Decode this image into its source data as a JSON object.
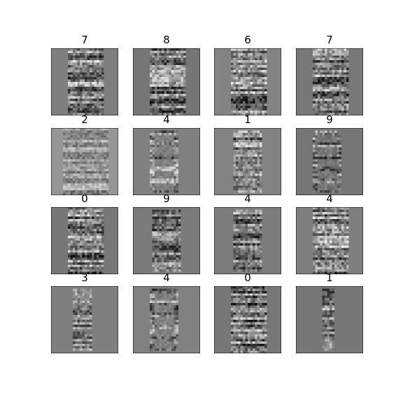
{
  "figure": {
    "grid": {
      "rows": 4,
      "cols": 4
    },
    "panels": [
      {
        "label": "7",
        "pattern": "wide-band"
      },
      {
        "label": "8",
        "pattern": "wide-band"
      },
      {
        "label": "6",
        "pattern": "wide-band"
      },
      {
        "label": "7",
        "pattern": "wide-band"
      },
      {
        "label": "2",
        "pattern": "full-light"
      },
      {
        "label": "4",
        "pattern": "ladder"
      },
      {
        "label": "1",
        "pattern": "medium-band"
      },
      {
        "label": "9",
        "pattern": "ladder"
      },
      {
        "label": "0",
        "pattern": "wide-band"
      },
      {
        "label": "9",
        "pattern": "medium-band"
      },
      {
        "label": "4",
        "pattern": "medium-band"
      },
      {
        "label": "4",
        "pattern": "wide-band"
      },
      {
        "label": "3",
        "pattern": "narrow-band"
      },
      {
        "label": "4",
        "pattern": "ladder"
      },
      {
        "label": "0",
        "pattern": "wide-band"
      },
      {
        "label": "1",
        "pattern": "thin-band"
      }
    ],
    "colors": {
      "background": "#808080",
      "border": "#000000",
      "page": "#ffffff"
    }
  }
}
